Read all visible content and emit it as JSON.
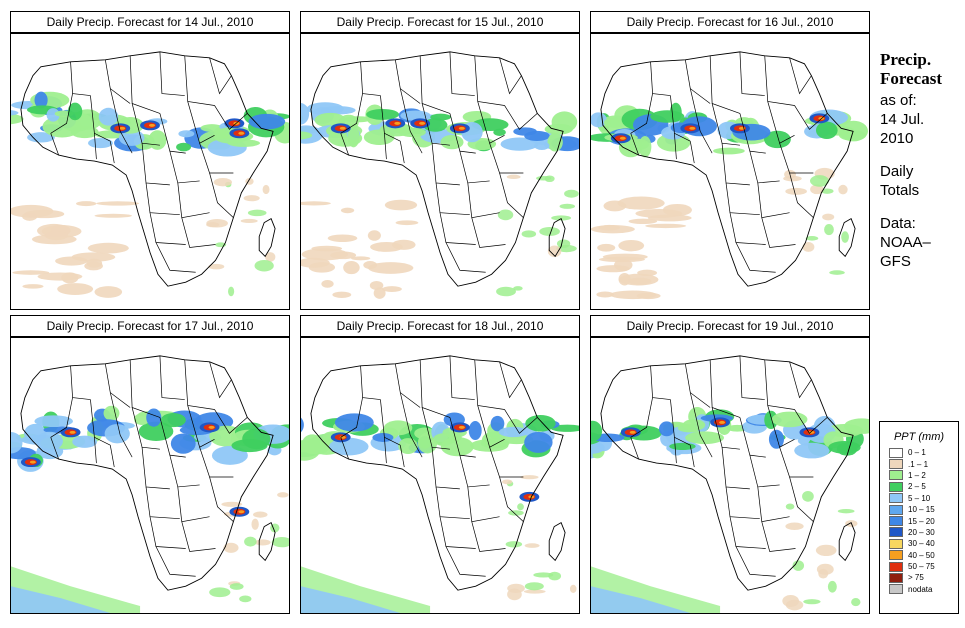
{
  "panels": [
    {
      "title": "Daily Precip. Forecast for  14 Jul., 2010"
    },
    {
      "title": "Daily Precip. Forecast for  15 Jul., 2010"
    },
    {
      "title": "Daily Precip. Forecast for  16 Jul., 2010"
    },
    {
      "title": "Daily Precip. Forecast for  17 Jul., 2010"
    },
    {
      "title": "Daily Precip. Forecast for  18 Jul., 2010"
    },
    {
      "title": "Daily Precip. Forecast for  19 Jul., 2010"
    }
  ],
  "side": {
    "title_line1": "Precip.",
    "title_line2": "Forecast",
    "asof": "as of:",
    "date1": "14 Jul.",
    "date2": "2010",
    "daily1": "Daily",
    "daily2": "Totals",
    "data_label": "Data:",
    "data_src1": "NOAA–",
    "data_src2": "GFS"
  },
  "legend": {
    "title": "PPT (mm)",
    "items": [
      {
        "label": "0 – 1",
        "color": "#ffffff"
      },
      {
        "label": ".1 – 1",
        "color": "#efd7bc"
      },
      {
        "label": "1 – 2",
        "color": "#9fef8f"
      },
      {
        "label": "2 – 5",
        "color": "#3fcf5f"
      },
      {
        "label": "5 – 10",
        "color": "#8fc7f7"
      },
      {
        "label": "10 – 15",
        "color": "#5fa7ef"
      },
      {
        "label": "15 – 20",
        "color": "#3f87e7"
      },
      {
        "label": "20 – 30",
        "color": "#1f57c7"
      },
      {
        "label": "30 – 40",
        "color": "#f7d75f"
      },
      {
        "label": "40 – 50",
        "color": "#f79f1f"
      },
      {
        "label": "50 – 75",
        "color": "#df2f0f"
      },
      {
        "label": "> 75",
        "color": "#8f1f0f"
      },
      {
        "label": "nodata",
        "color": "#c8c8c8"
      }
    ]
  },
  "colors": {
    "land": "#ffffff",
    "border": "#000000",
    "tan": "#efd7bc",
    "green_light": "#9fef8f",
    "green": "#3fcf5f",
    "blue_light": "#8fc7f7",
    "blue": "#3f87e7",
    "blue_dark": "#1f57c7",
    "red": "#df2f0f",
    "dark_red": "#8f1f0f",
    "orange": "#f79f1f"
  }
}
